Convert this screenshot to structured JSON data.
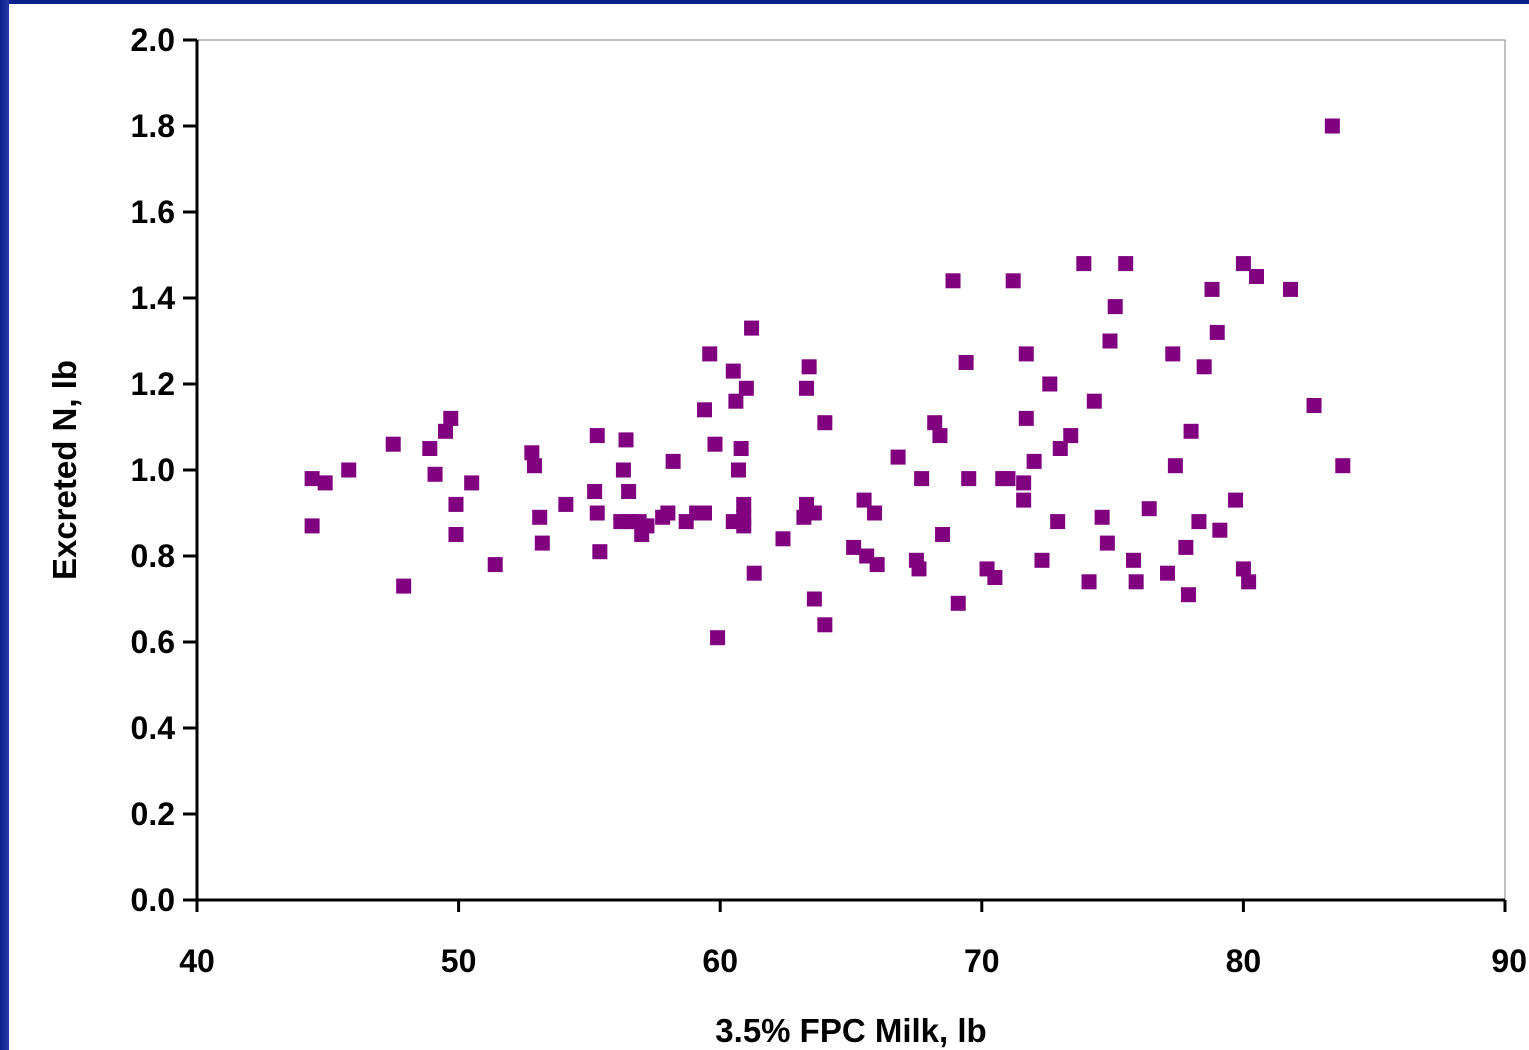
{
  "colors": {
    "background_edge": "#0a1f8c",
    "marker": "#800080",
    "axis": "#000000",
    "plot_border": "#808080"
  },
  "chart_data": {
    "type": "scatter",
    "title": "",
    "xlabel": "3.5% FPC Milk, lb",
    "ylabel": "Excreted N, lb",
    "xlim": [
      40,
      90
    ],
    "ylim": [
      0.0,
      2.0
    ],
    "xticks": [
      "40",
      "50",
      "60",
      "70",
      "80",
      "90"
    ],
    "yticks": [
      "0.0",
      "0.2",
      "0.4",
      "0.6",
      "0.8",
      "1.0",
      "1.2",
      "1.4",
      "1.6",
      "1.8",
      "2.0"
    ],
    "grid": false,
    "legend": "none",
    "series": [
      {
        "marker": "square",
        "color": "#800080",
        "points": [
          [
            44.4,
            0.98
          ],
          [
            44.4,
            0.87
          ],
          [
            44.9,
            0.97
          ],
          [
            45.8,
            1.0
          ],
          [
            47.5,
            1.06
          ],
          [
            47.9,
            0.73
          ],
          [
            48.9,
            1.05
          ],
          [
            49.1,
            0.99
          ],
          [
            49.5,
            1.09
          ],
          [
            49.7,
            1.12
          ],
          [
            49.9,
            0.92
          ],
          [
            49.9,
            0.85
          ],
          [
            50.5,
            0.97
          ],
          [
            51.4,
            0.78
          ],
          [
            52.8,
            1.04
          ],
          [
            52.9,
            1.01
          ],
          [
            53.1,
            0.89
          ],
          [
            53.2,
            0.83
          ],
          [
            54.1,
            0.92
          ],
          [
            55.2,
            0.95
          ],
          [
            55.3,
            1.08
          ],
          [
            55.3,
            0.9
          ],
          [
            55.4,
            0.81
          ],
          [
            56.2,
            0.88
          ],
          [
            56.3,
            1.0
          ],
          [
            56.4,
            1.07
          ],
          [
            56.5,
            0.95
          ],
          [
            56.5,
            0.88
          ],
          [
            56.9,
            0.88
          ],
          [
            57.0,
            0.85
          ],
          [
            57.2,
            0.87
          ],
          [
            57.8,
            0.89
          ],
          [
            58.0,
            0.9
          ],
          [
            58.2,
            1.02
          ],
          [
            58.7,
            0.88
          ],
          [
            59.1,
            0.9
          ],
          [
            59.4,
            0.9
          ],
          [
            59.4,
            1.14
          ],
          [
            59.6,
            1.27
          ],
          [
            59.8,
            1.06
          ],
          [
            59.9,
            0.61
          ],
          [
            60.5,
            0.88
          ],
          [
            60.5,
            1.23
          ],
          [
            60.6,
            1.16
          ],
          [
            60.7,
            1.0
          ],
          [
            60.8,
            1.05
          ],
          [
            60.9,
            0.92
          ],
          [
            60.9,
            0.87
          ],
          [
            60.9,
            0.89
          ],
          [
            61.0,
            1.19
          ],
          [
            61.2,
            1.33
          ],
          [
            61.3,
            0.76
          ],
          [
            62.4,
            0.84
          ],
          [
            63.2,
            0.89
          ],
          [
            63.3,
            0.92
          ],
          [
            63.3,
            1.19
          ],
          [
            63.4,
            1.24
          ],
          [
            63.6,
            0.9
          ],
          [
            63.6,
            0.7
          ],
          [
            64.0,
            1.11
          ],
          [
            64.0,
            0.64
          ],
          [
            65.1,
            0.82
          ],
          [
            65.5,
            0.93
          ],
          [
            65.6,
            0.8
          ],
          [
            65.9,
            0.9
          ],
          [
            66.0,
            0.78
          ],
          [
            66.8,
            1.03
          ],
          [
            67.5,
            0.79
          ],
          [
            67.6,
            0.77
          ],
          [
            67.7,
            0.98
          ],
          [
            68.2,
            1.11
          ],
          [
            68.4,
            1.08
          ],
          [
            68.5,
            0.85
          ],
          [
            68.9,
            1.44
          ],
          [
            69.1,
            0.69
          ],
          [
            69.4,
            1.25
          ],
          [
            69.5,
            0.98
          ],
          [
            70.2,
            0.77
          ],
          [
            70.5,
            0.75
          ],
          [
            70.8,
            0.98
          ],
          [
            71.0,
            0.98
          ],
          [
            71.2,
            1.44
          ],
          [
            71.6,
            0.97
          ],
          [
            71.6,
            0.93
          ],
          [
            71.7,
            1.27
          ],
          [
            71.7,
            1.12
          ],
          [
            72.0,
            1.02
          ],
          [
            72.3,
            0.79
          ],
          [
            72.6,
            1.2
          ],
          [
            72.9,
            0.88
          ],
          [
            73.0,
            1.05
          ],
          [
            73.4,
            1.08
          ],
          [
            73.9,
            1.48
          ],
          [
            74.1,
            0.74
          ],
          [
            74.3,
            1.16
          ],
          [
            74.6,
            0.89
          ],
          [
            74.8,
            0.83
          ],
          [
            74.9,
            1.3
          ],
          [
            75.1,
            1.38
          ],
          [
            75.5,
            1.48
          ],
          [
            75.8,
            0.79
          ],
          [
            75.9,
            0.74
          ],
          [
            76.4,
            0.91
          ],
          [
            77.1,
            0.76
          ],
          [
            77.3,
            1.27
          ],
          [
            77.4,
            1.01
          ],
          [
            77.8,
            0.82
          ],
          [
            77.9,
            0.71
          ],
          [
            78.0,
            1.09
          ],
          [
            78.3,
            0.88
          ],
          [
            78.5,
            1.24
          ],
          [
            78.8,
            1.42
          ],
          [
            79.0,
            1.32
          ],
          [
            79.1,
            0.86
          ],
          [
            79.7,
            0.93
          ],
          [
            80.0,
            1.48
          ],
          [
            80.0,
            0.77
          ],
          [
            80.2,
            0.74
          ],
          [
            80.5,
            1.45
          ],
          [
            81.8,
            1.42
          ],
          [
            82.7,
            1.15
          ],
          [
            83.4,
            1.8
          ],
          [
            83.8,
            1.01
          ]
        ]
      }
    ]
  }
}
